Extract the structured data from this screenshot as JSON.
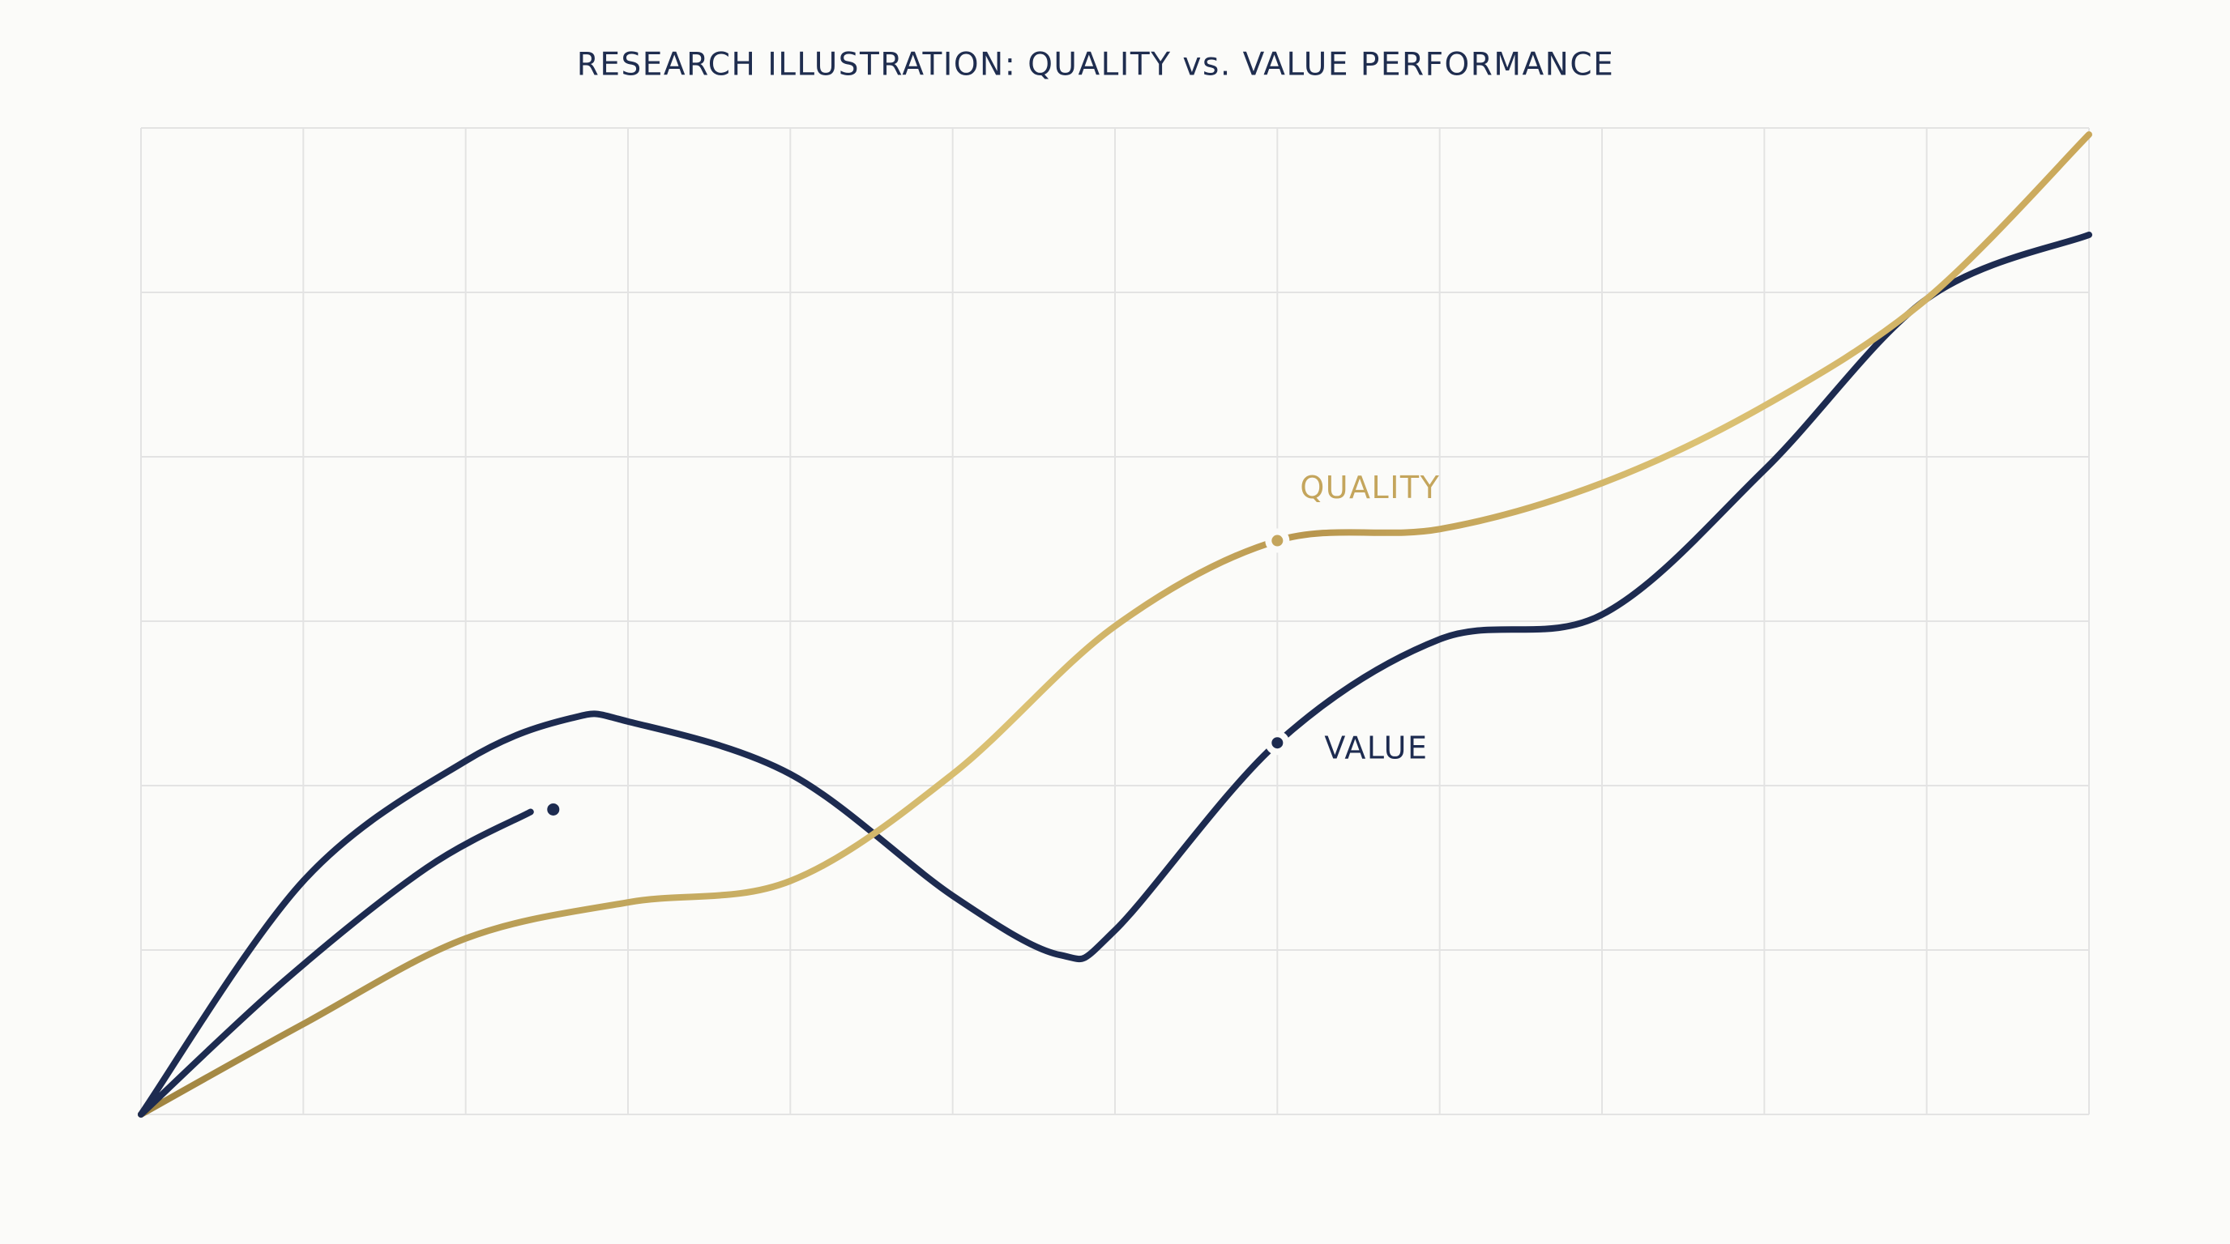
{
  "chart_data": {
    "type": "line",
    "title": "RESEARCH ILLUSTRATION: QUALITY vs. VALUE PERFORMANCE",
    "xlim": [
      0,
      12
    ],
    "ylim": [
      0,
      6
    ],
    "xticks": [
      0,
      1,
      2,
      3,
      4,
      5,
      6,
      7,
      8,
      9,
      10,
      11,
      12
    ],
    "yticks": [
      0,
      1,
      2,
      3,
      4,
      5,
      6
    ],
    "grid": true,
    "series": [
      {
        "name": "VALUE",
        "color": "#1d2b50",
        "x": [
          0,
          1,
          2,
          2.65,
          3,
          4,
          5,
          5.66,
          6,
          7,
          8,
          9,
          10,
          11,
          12
        ],
        "values": [
          0,
          1.42,
          2.15,
          2.41,
          2.39,
          2.07,
          1.33,
          0.97,
          1.12,
          2.26,
          2.89,
          3.04,
          3.92,
          4.96,
          5.35
        ]
      },
      {
        "name": "QUALITY",
        "color": "#c4a55c",
        "x": [
          0,
          1,
          2,
          3,
          4,
          5,
          6,
          7,
          8,
          9,
          10,
          11,
          12
        ],
        "values": [
          0,
          0.55,
          1.07,
          1.29,
          1.42,
          2.07,
          2.97,
          3.49,
          3.56,
          3.84,
          4.31,
          4.96,
          5.96
        ]
      },
      {
        "color": "#1d2b50",
        "marker_end": true,
        "x": [
          0,
          0.88,
          1.76,
          2.4
        ],
        "values": [
          0,
          0.81,
          1.5,
          1.84
        ]
      }
    ],
    "annotations": [
      {
        "text": "QUALITY",
        "x": 7,
        "y": 3.49,
        "color": "#c4a55c"
      },
      {
        "text": "VALUE",
        "x": 7,
        "y": 2.26,
        "color": "#1d2b50"
      }
    ]
  }
}
